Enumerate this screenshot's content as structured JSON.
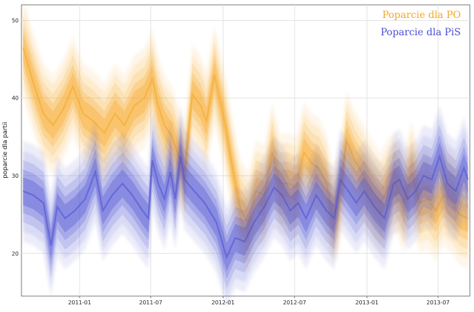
{
  "chart_data": {
    "type": "area",
    "ylabel": "poparcie dla partii",
    "xlabel": "",
    "ylim": [
      14.5,
      52
    ],
    "yticks": [
      20,
      30,
      40,
      50
    ],
    "xlim": [
      "2010-08-06",
      "2013-09-20"
    ],
    "xticks": [
      "2011-01-01",
      "2011-07-01",
      "2012-01-01",
      "2012-07-01",
      "2013-01-01",
      "2013-07-01"
    ],
    "xtick_labels": [
      "2011-01",
      "2011-07",
      "2012-01",
      "2012-07",
      "2013-01",
      "2013-07"
    ],
    "grid": true,
    "legend_position": "top-right",
    "series": [
      {
        "name": "Poparcie dla PO",
        "color": "#f5a623",
        "points": [
          [
            "2010-08-10",
            46.5
          ],
          [
            "2010-09-05",
            42.0
          ],
          [
            "2010-10-01",
            38.0
          ],
          [
            "2010-10-25",
            36.5
          ],
          [
            "2010-11-20",
            38.5
          ],
          [
            "2010-12-15",
            41.5
          ],
          [
            "2011-01-10",
            38.0
          ],
          [
            "2011-02-05",
            37.0
          ],
          [
            "2011-03-05",
            35.5
          ],
          [
            "2011-04-01",
            38.0
          ],
          [
            "2011-04-25",
            36.5
          ],
          [
            "2011-05-20",
            39.0
          ],
          [
            "2011-06-15",
            40.0
          ],
          [
            "2011-07-05",
            42.5
          ],
          [
            "2011-07-20",
            39.0
          ],
          [
            "2011-08-05",
            36.5
          ],
          [
            "2011-08-25",
            35.0
          ],
          [
            "2011-09-10",
            32.5
          ],
          [
            "2011-09-25",
            30.5
          ],
          [
            "2011-10-15",
            40.5
          ],
          [
            "2011-11-05",
            39.0
          ],
          [
            "2011-11-20",
            37.0
          ],
          [
            "2011-12-10",
            43.0
          ],
          [
            "2012-01-05",
            37.0
          ],
          [
            "2012-01-25",
            31.0
          ],
          [
            "2012-02-15",
            25.5
          ],
          [
            "2012-03-05",
            24.0
          ],
          [
            "2012-03-25",
            28.0
          ],
          [
            "2012-04-15",
            27.5
          ],
          [
            "2012-05-05",
            33.0
          ],
          [
            "2012-05-25",
            29.0
          ],
          [
            "2012-06-15",
            29.0
          ],
          [
            "2012-07-05",
            28.5
          ],
          [
            "2012-07-25",
            33.0
          ],
          [
            "2012-08-15",
            31.5
          ],
          [
            "2012-09-01",
            31.0
          ],
          [
            "2012-09-20",
            29.0
          ],
          [
            "2012-10-05",
            25.0
          ],
          [
            "2012-10-20",
            26.0
          ],
          [
            "2012-11-10",
            34.5
          ],
          [
            "2012-12-01",
            32.0
          ],
          [
            "2012-12-25",
            30.0
          ],
          [
            "2013-01-15",
            28.0
          ],
          [
            "2013-02-05",
            26.5
          ],
          [
            "2013-02-25",
            28.5
          ],
          [
            "2013-03-15",
            29.0
          ],
          [
            "2013-04-05",
            26.5
          ],
          [
            "2013-04-25",
            30.5
          ],
          [
            "2013-05-15",
            26.5
          ],
          [
            "2013-06-05",
            27.0
          ],
          [
            "2013-06-25",
            25.5
          ],
          [
            "2013-07-15",
            27.5
          ],
          [
            "2013-08-05",
            26.5
          ],
          [
            "2013-08-25",
            25.0
          ],
          [
            "2013-09-15",
            24.5
          ]
        ]
      },
      {
        "name": "Poparcie dla PiS",
        "color": "#4b4fd1",
        "points": [
          [
            "2010-08-10",
            28.0
          ],
          [
            "2010-09-05",
            27.5
          ],
          [
            "2010-10-01",
            26.5
          ],
          [
            "2010-10-20",
            21.0
          ],
          [
            "2010-11-05",
            26.0
          ],
          [
            "2010-11-25",
            24.5
          ],
          [
            "2010-12-20",
            25.5
          ],
          [
            "2011-01-15",
            27.0
          ],
          [
            "2011-02-10",
            30.5
          ],
          [
            "2011-03-01",
            25.5
          ],
          [
            "2011-03-25",
            27.5
          ],
          [
            "2011-04-20",
            29.0
          ],
          [
            "2011-05-15",
            27.5
          ],
          [
            "2011-06-10",
            25.5
          ],
          [
            "2011-06-25",
            24.5
          ],
          [
            "2011-07-05",
            32.0
          ],
          [
            "2011-07-20",
            29.0
          ],
          [
            "2011-08-05",
            27.0
          ],
          [
            "2011-08-20",
            30.5
          ],
          [
            "2011-09-01",
            27.0
          ],
          [
            "2011-09-15",
            32.5
          ],
          [
            "2011-09-25",
            29.5
          ],
          [
            "2011-10-20",
            28.0
          ],
          [
            "2011-11-15",
            26.5
          ],
          [
            "2011-12-15",
            24.0
          ],
          [
            "2012-01-10",
            19.5
          ],
          [
            "2012-02-01",
            22.0
          ],
          [
            "2012-02-25",
            21.5
          ],
          [
            "2012-03-20",
            24.0
          ],
          [
            "2012-04-15",
            26.0
          ],
          [
            "2012-05-10",
            28.5
          ],
          [
            "2012-05-30",
            27.5
          ],
          [
            "2012-06-20",
            25.5
          ],
          [
            "2012-07-10",
            26.5
          ],
          [
            "2012-07-30",
            24.5
          ],
          [
            "2012-08-25",
            27.5
          ],
          [
            "2012-09-20",
            25.5
          ],
          [
            "2012-10-10",
            24.5
          ],
          [
            "2012-10-25",
            29.5
          ],
          [
            "2012-11-15",
            28.0
          ],
          [
            "2012-12-05",
            26.5
          ],
          [
            "2012-12-25",
            28.0
          ],
          [
            "2013-01-20",
            26.0
          ],
          [
            "2013-02-15",
            24.5
          ],
          [
            "2013-03-10",
            29.0
          ],
          [
            "2013-03-25",
            29.5
          ],
          [
            "2013-04-15",
            27.0
          ],
          [
            "2013-05-05",
            28.0
          ],
          [
            "2013-05-25",
            30.0
          ],
          [
            "2013-06-15",
            29.5
          ],
          [
            "2013-07-05",
            32.5
          ],
          [
            "2013-07-25",
            29.0
          ],
          [
            "2013-08-15",
            28.0
          ],
          [
            "2013-09-05",
            31.0
          ],
          [
            "2013-09-15",
            29.5
          ]
        ]
      }
    ]
  }
}
